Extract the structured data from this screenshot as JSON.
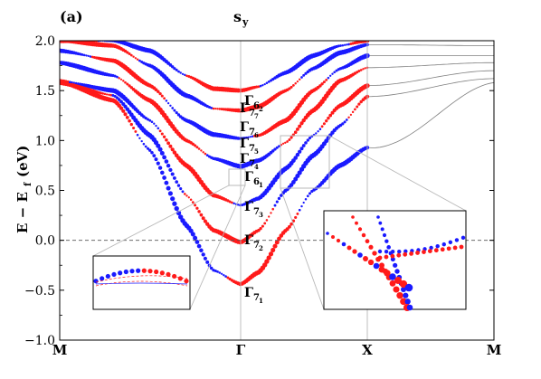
{
  "panel_label": "(a)",
  "title": "s",
  "title_sub": "y",
  "ylabel_parts": [
    "E − E",
    "f",
    "(eV)"
  ],
  "colors": {
    "up": "#ff1a1a",
    "down": "#1a1aff",
    "thin": "#7f7f7f",
    "guide": "#b8b8b8",
    "axis": "#000000"
  },
  "chart_data": {
    "type": "line",
    "xlabel": "",
    "ylabel": "E − Ef (eV)",
    "ylim": [
      -1.0,
      2.0
    ],
    "yticks": [
      -1.0,
      -0.5,
      0.0,
      0.5,
      1.0,
      1.5,
      2.0
    ],
    "ytick_labels": [
      "−1.0",
      "−0.5",
      "0.0",
      "0.5",
      "1.0",
      "1.5",
      "2.0"
    ],
    "kpoints": [
      "M",
      "Γ",
      "X",
      "M"
    ],
    "kpoint_positions": [
      0.0,
      1.0,
      1.7,
      2.4
    ],
    "xlim": [
      0.0,
      2.4
    ],
    "fermi_level": 0.0,
    "series": [
      {
        "band": 1,
        "x": [
          0.0,
          0.3,
          0.5,
          0.7,
          0.85,
          1.0,
          1.1,
          1.25,
          1.4,
          1.55,
          1.7
        ],
        "y": [
          1.58,
          1.4,
          0.9,
          0.15,
          -0.3,
          -0.44,
          -0.32,
          0.1,
          0.5,
          0.75,
          0.93
        ]
      },
      {
        "band": 2,
        "x": [
          0.0,
          0.3,
          0.5,
          0.7,
          0.85,
          1.0,
          1.1,
          1.25,
          1.4,
          1.55,
          1.7
        ],
        "y": [
          1.58,
          1.45,
          1.05,
          0.45,
          0.1,
          -0.02,
          0.1,
          0.5,
          0.85,
          1.15,
          1.44
        ]
      },
      {
        "band": 3,
        "x": [
          0.0,
          0.3,
          0.5,
          0.7,
          0.85,
          1.0,
          1.1,
          1.25,
          1.4,
          1.55,
          1.7
        ],
        "y": [
          1.6,
          1.5,
          1.2,
          0.75,
          0.45,
          0.35,
          0.42,
          0.72,
          1.05,
          1.35,
          1.55
        ]
      },
      {
        "band": 4,
        "x": [
          0.0,
          0.3,
          0.5,
          0.7,
          0.85,
          1.0,
          1.1,
          1.25,
          1.4,
          1.55,
          1.7
        ],
        "y": [
          1.78,
          1.65,
          1.4,
          1.0,
          0.82,
          0.74,
          0.8,
          0.98,
          1.3,
          1.6,
          1.73
        ]
      },
      {
        "band": 5,
        "x": [
          0.0,
          0.3,
          0.5,
          0.7,
          0.85,
          1.0,
          1.1,
          1.25,
          1.4,
          1.55,
          1.7
        ],
        "y": [
          1.9,
          1.8,
          1.55,
          1.2,
          1.06,
          1.02,
          1.05,
          1.2,
          1.5,
          1.72,
          1.85
        ]
      },
      {
        "band": 6,
        "x": [
          0.0,
          0.3,
          0.5,
          0.7,
          0.85,
          1.0,
          1.1,
          1.25,
          1.4,
          1.55,
          1.7
        ],
        "y": [
          2.0,
          1.95,
          1.75,
          1.45,
          1.32,
          1.3,
          1.34,
          1.5,
          1.72,
          1.88,
          1.96
        ]
      },
      {
        "band": 7,
        "x": [
          0.0,
          0.3,
          0.5,
          0.7,
          0.85,
          1.0,
          1.1,
          1.25,
          1.4,
          1.55,
          1.7
        ],
        "y": [
          2.0,
          2.0,
          1.9,
          1.65,
          1.52,
          1.5,
          1.54,
          1.68,
          1.85,
          1.95,
          2.0
        ]
      }
    ],
    "annotations": [
      {
        "label": "Γ",
        "sub": "7",
        "subsub": "1",
        "energy": -0.44
      },
      {
        "label": "Γ",
        "sub": "7",
        "subsub": "2",
        "energy": -0.02
      },
      {
        "label": "Γ",
        "sub": "7",
        "subsub": "3",
        "energy": 0.35
      },
      {
        "label": "Γ",
        "sub": "6",
        "subsub": "1",
        "energy": 0.74
      },
      {
        "label": "Γ",
        "sub": "7",
        "subsub": "4",
        "energy": 0.74
      },
      {
        "label": "Γ",
        "sub": "7",
        "subsub": "5",
        "energy": 1.02
      },
      {
        "label": "Γ",
        "sub": "7",
        "subsub": "6",
        "energy": 1.02
      },
      {
        "label": "Γ",
        "sub": "7",
        "subsub": "7",
        "energy": 1.3
      },
      {
        "label": "Γ",
        "sub": "6",
        "subsub": "2",
        "energy": 1.3
      }
    ]
  }
}
